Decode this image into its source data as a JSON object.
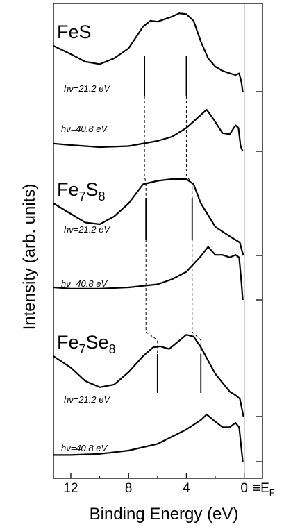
{
  "chart_data": {
    "type": "line",
    "title": "",
    "xlabel": "Binding Energy (eV)",
    "ylabel": "Intensity (arb. units)",
    "xlim": [
      13.2,
      -0.4
    ],
    "x_reversed": true,
    "x_ticks": [
      12,
      8,
      4,
      0
    ],
    "fermi_label": "E",
    "fermi_label_sub": "F",
    "fermi_label_prefix": "≡",
    "grid": false,
    "panels": [
      {
        "compound": "FeS",
        "formula_parts": [
          {
            "t": "FeS",
            "sub": false
          }
        ],
        "spectra": [
          {
            "photon_label": "hν=21.2 eV",
            "points": [
              [
                13.2,
                0.55
              ],
              [
                12,
                0.45
              ],
              [
                11,
                0.36
              ],
              [
                10,
                0.33
              ],
              [
                9,
                0.4
              ],
              [
                8,
                0.52
              ],
              [
                7,
                0.78
              ],
              [
                6.5,
                0.85
              ],
              [
                6,
                0.84
              ],
              [
                5.5,
                0.87
              ],
              [
                5,
                0.9
              ],
              [
                4.5,
                0.94
              ],
              [
                4,
                0.93
              ],
              [
                3.5,
                0.85
              ],
              [
                3,
                0.6
              ],
              [
                2.5,
                0.4
              ],
              [
                2,
                0.3
              ],
              [
                1.5,
                0.25
              ],
              [
                1,
                0.22
              ],
              [
                0.6,
                0.2
              ],
              [
                0.35,
                0.22
              ],
              [
                0.2,
                0.12
              ],
              [
                0.1,
                0.0
              ]
            ]
          },
          {
            "photon_label": "hν=40.8 eV",
            "points": [
              [
                13.2,
                0.15
              ],
              [
                12,
                0.12
              ],
              [
                10,
                0.08
              ],
              [
                8,
                0.1
              ],
              [
                6,
                0.2
              ],
              [
                5,
                0.28
              ],
              [
                4,
                0.45
              ],
              [
                3,
                0.7
              ],
              [
                2.6,
                0.8
              ],
              [
                2.2,
                0.65
              ],
              [
                1.5,
                0.35
              ],
              [
                1,
                0.33
              ],
              [
                0.6,
                0.5
              ],
              [
                0.4,
                0.45
              ],
              [
                0.25,
                0.1
              ],
              [
                0.1,
                0.0
              ]
            ]
          }
        ],
        "markers": [
          6.9,
          4.0
        ]
      },
      {
        "compound": "Fe7S8",
        "formula_parts": [
          {
            "t": "Fe",
            "sub": false
          },
          {
            "t": "7",
            "sub": true
          },
          {
            "t": "S",
            "sub": false
          },
          {
            "t": "8",
            "sub": true
          }
        ],
        "spectra": [
          {
            "photon_label": "hν=21.2 eV",
            "points": [
              [
                13.2,
                0.6
              ],
              [
                12,
                0.48
              ],
              [
                11,
                0.38
              ],
              [
                10,
                0.36
              ],
              [
                9,
                0.45
              ],
              [
                8,
                0.6
              ],
              [
                7,
                0.82
              ],
              [
                6,
                0.86
              ],
              [
                5,
                0.88
              ],
              [
                4,
                0.88
              ],
              [
                3.5,
                0.82
              ],
              [
                3,
                0.6
              ],
              [
                2,
                0.33
              ],
              [
                1,
                0.22
              ],
              [
                0.6,
                0.18
              ],
              [
                0.3,
                0.15
              ],
              [
                0.15,
                0.05
              ],
              [
                0.05,
                0.0
              ]
            ]
          },
          {
            "photon_label": "hν=40.8 eV",
            "points": [
              [
                13.2,
                0.2
              ],
              [
                12,
                0.18
              ],
              [
                10,
                0.18
              ],
              [
                8,
                0.2
              ],
              [
                6,
                0.25
              ],
              [
                5,
                0.33
              ],
              [
                4,
                0.45
              ],
              [
                3,
                0.7
              ],
              [
                2.5,
                0.85
              ],
              [
                2,
                0.72
              ],
              [
                1.5,
                0.72
              ],
              [
                1,
                0.68
              ],
              [
                0.6,
                0.72
              ],
              [
                0.35,
                0.68
              ],
              [
                0.2,
                0.3
              ],
              [
                0.1,
                0.0
              ]
            ]
          }
        ],
        "markers": [
          6.8,
          3.6
        ]
      },
      {
        "compound": "Fe7Se8",
        "formula_parts": [
          {
            "t": "Fe",
            "sub": false
          },
          {
            "t": "7",
            "sub": true
          },
          {
            "t": "Se",
            "sub": false
          },
          {
            "t": "8",
            "sub": true
          }
        ],
        "spectra": [
          {
            "photon_label": "hν=21.2 eV",
            "points": [
              [
                13.2,
                0.68
              ],
              [
                12,
                0.55
              ],
              [
                11,
                0.4
              ],
              [
                10,
                0.33
              ],
              [
                9,
                0.36
              ],
              [
                8,
                0.5
              ],
              [
                7,
                0.68
              ],
              [
                6.3,
                0.78
              ],
              [
                5.8,
                0.79
              ],
              [
                5.2,
                0.76
              ],
              [
                4.6,
                0.84
              ],
              [
                4,
                0.92
              ],
              [
                3.5,
                0.9
              ],
              [
                3,
                0.78
              ],
              [
                2,
                0.48
              ],
              [
                1,
                0.28
              ],
              [
                0.6,
                0.24
              ],
              [
                0.3,
                0.2
              ],
              [
                0.15,
                0.08
              ],
              [
                0.05,
                0.0
              ]
            ]
          },
          {
            "photon_label": "hν=40.8 eV",
            "points": [
              [
                13.2,
                0.12
              ],
              [
                12,
                0.12
              ],
              [
                10,
                0.14
              ],
              [
                8,
                0.2
              ],
              [
                6,
                0.32
              ],
              [
                5,
                0.45
              ],
              [
                4,
                0.58
              ],
              [
                3,
                0.75
              ],
              [
                2.6,
                0.85
              ],
              [
                2,
                0.72
              ],
              [
                1.5,
                0.62
              ],
              [
                1,
                0.62
              ],
              [
                0.6,
                0.7
              ],
              [
                0.35,
                0.62
              ],
              [
                0.2,
                0.25
              ],
              [
                0.1,
                0.0
              ]
            ]
          }
        ],
        "markers": [
          6.0,
          3.0
        ]
      }
    ]
  }
}
